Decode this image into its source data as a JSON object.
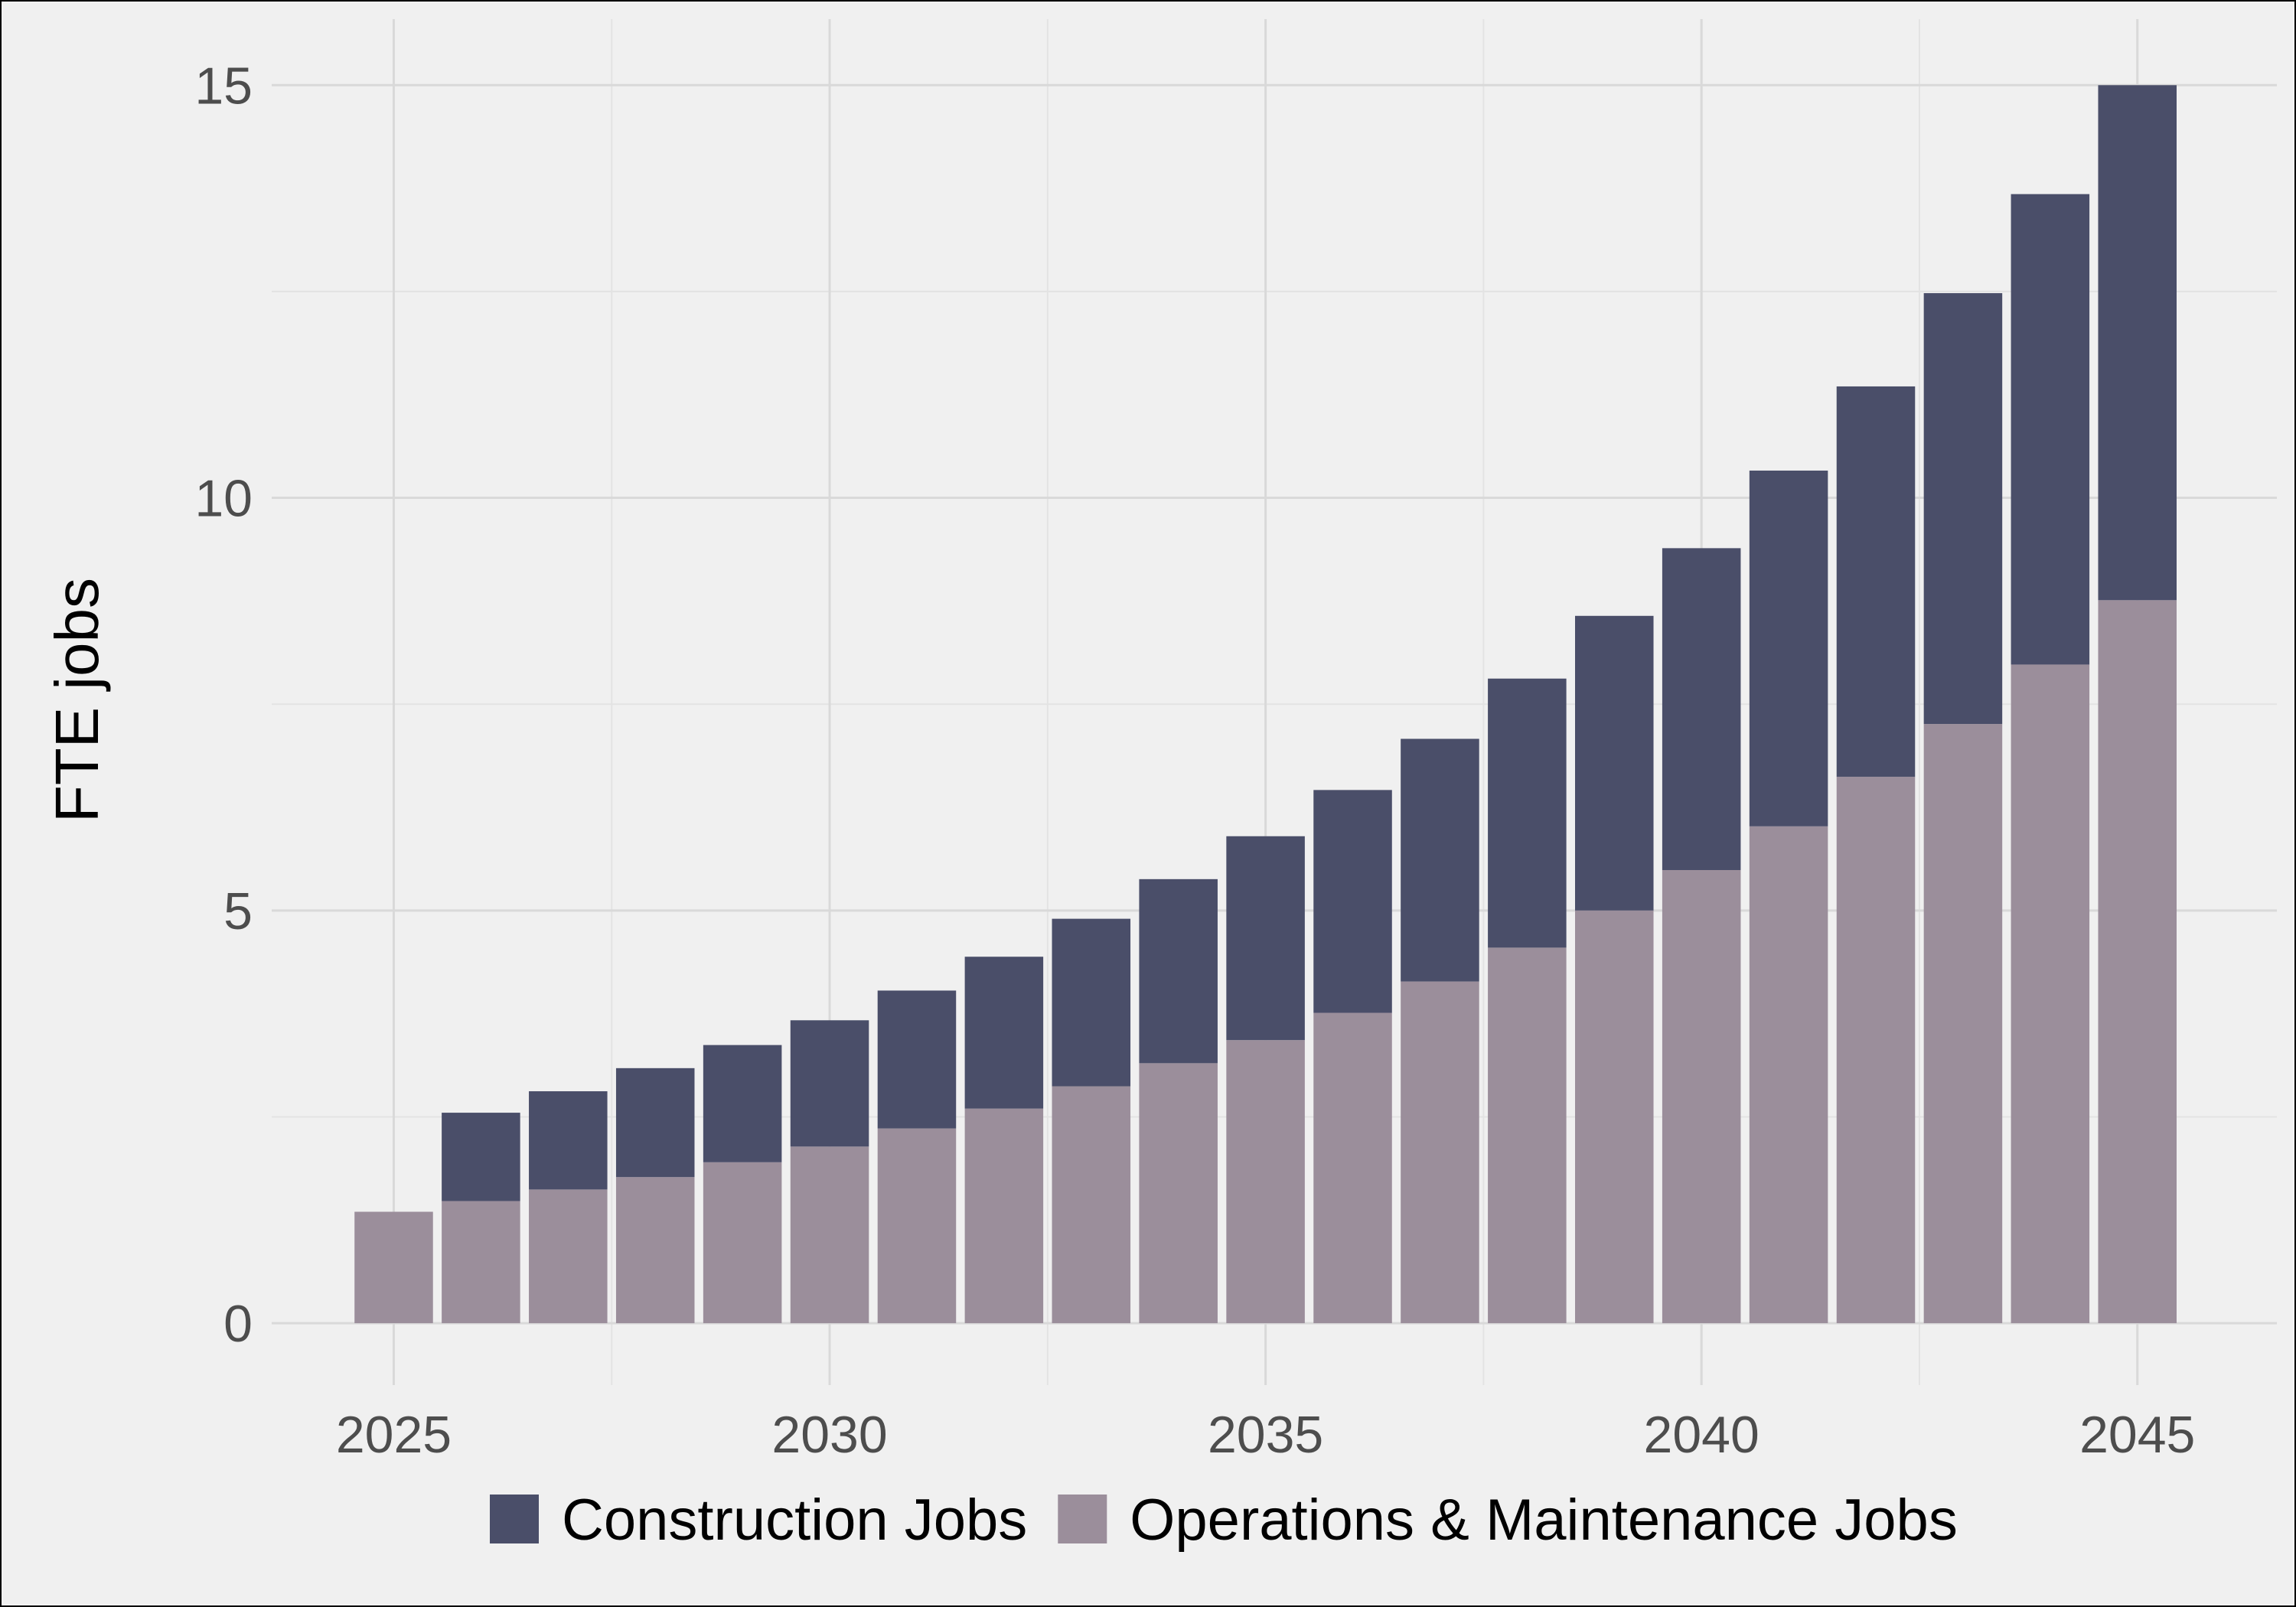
{
  "chart_data": {
    "type": "bar",
    "stacked": true,
    "title": "",
    "xlabel": "",
    "ylabel": "FTE jobs",
    "x": [
      2025,
      2026,
      2027,
      2028,
      2029,
      2030,
      2031,
      2032,
      2033,
      2034,
      2035,
      2036,
      2037,
      2038,
      2039,
      2040,
      2041,
      2042,
      2043,
      2044,
      2045
    ],
    "xticks": [
      2025,
      2030,
      2035,
      2040,
      2045
    ],
    "yticks": [
      0,
      5,
      10,
      15
    ],
    "xlim": [
      2023.6,
      2046.6
    ],
    "ylim": [
      -0.75,
      15.8
    ],
    "grid": true,
    "legend_position": "bottom",
    "series": [
      {
        "name": "Operations & Maintenance Jobs",
        "color": "#9b8e9b",
        "values": [
          1.35,
          1.48,
          1.62,
          1.77,
          1.95,
          2.14,
          2.36,
          2.6,
          2.87,
          3.15,
          3.43,
          3.76,
          4.14,
          4.55,
          5.0,
          5.49,
          6.02,
          6.62,
          7.26,
          7.98,
          8.76
        ]
      },
      {
        "name": "Construction Jobs",
        "color": "#4a4e69",
        "values": [
          0.0,
          1.07,
          1.19,
          1.32,
          1.42,
          1.53,
          1.67,
          1.84,
          2.03,
          2.23,
          2.47,
          2.7,
          2.94,
          3.26,
          3.57,
          3.9,
          4.31,
          4.73,
          5.22,
          5.7,
          6.24
        ]
      }
    ],
    "legend": [
      {
        "name": "Construction Jobs",
        "color": "#4a4e69"
      },
      {
        "name": "Operations & Maintenance Jobs",
        "color": "#9b8e9b"
      }
    ],
    "colors": {
      "panel_background": "#f0f0f0",
      "grid_major": "#d9d9d9",
      "grid_minor": "#e3e3e3",
      "frame": "#000000"
    }
  }
}
